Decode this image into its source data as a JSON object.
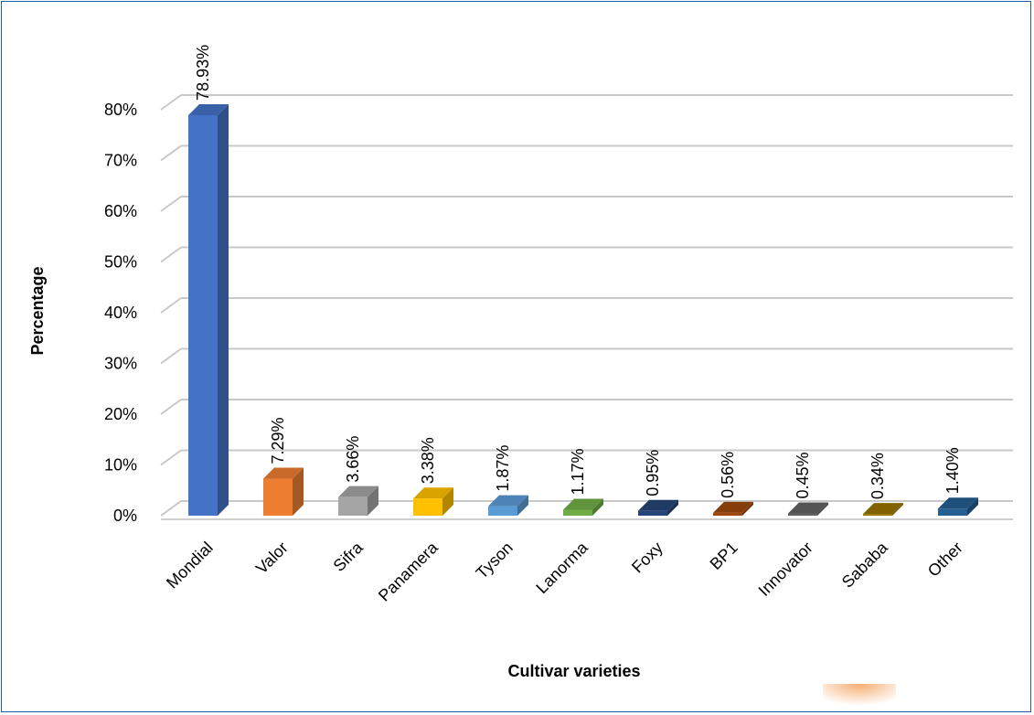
{
  "chart_data": {
    "type": "bar",
    "categories": [
      "Mondial",
      "Valor",
      "Sifra",
      "Panamera",
      "Tyson",
      "Lanorma",
      "Foxy",
      "BP1",
      "Innovator",
      "Sababa",
      "Other"
    ],
    "values": [
      78.93,
      7.29,
      3.66,
      3.38,
      1.87,
      1.17,
      0.95,
      0.56,
      0.45,
      0.34,
      1.4
    ],
    "data_labels": [
      "78.93%",
      "7.29%",
      "3.66%",
      "3.38%",
      "1.87%",
      "1.17%",
      "0.95%",
      "0.56%",
      "0.45%",
      "0.34%",
      "1.40%"
    ],
    "colors": [
      "#4472c4",
      "#ed7d31",
      "#a5a5a5",
      "#ffc000",
      "#5b9bd5",
      "#70ad47",
      "#264478",
      "#9e480e",
      "#636363",
      "#997300",
      "#255e91"
    ],
    "ylim": [
      0,
      80
    ],
    "yticks": [
      "0%",
      "10%",
      "20%",
      "30%",
      "40%",
      "50%",
      "60%",
      "70%",
      "80%"
    ],
    "xlabel": "Cultivar varieties",
    "ylabel": "Percentage",
    "style": "3d-column",
    "grid": true
  }
}
